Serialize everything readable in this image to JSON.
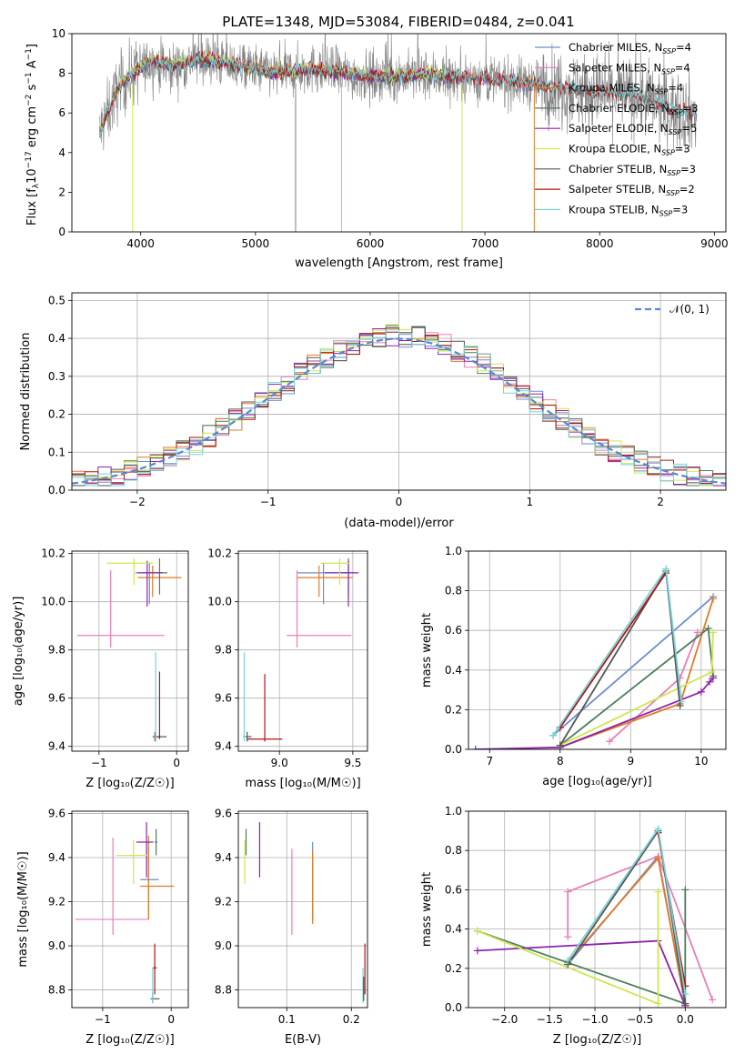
{
  "figure_title": "PLATE=1348, MJD=53084, FIBERID=0484, z=0.041",
  "colors": {
    "Chabrier MILES": "#6c8ecf",
    "Salpeter MILES": "#e77fb8",
    "Kroupa MILES": "#e07b27",
    "Chabrier ELODIE": "#4c7f5c",
    "Salpeter ELODIE": "#8e24aa",
    "Kroupa ELODIE": "#cde74b",
    "Chabrier STELIB": "#555555",
    "Salpeter STELIB": "#b01515",
    "Kroupa STELIB": "#78d3d8",
    "data": "#808080"
  },
  "chart_data": [
    {
      "id": "spectrum",
      "type": "line",
      "title": "PLATE=1348, MJD=53084, FIBERID=0484, z=0.041",
      "xlabel": "wavelength [Angstrom, rest frame]",
      "ylabel": "Flux [f_λ 10^-17 erg cm^-2 s^-1 A^-1]",
      "xlim": [
        3400,
        9100
      ],
      "ylim": [
        0,
        10
      ],
      "xticks": [
        4000,
        5000,
        6000,
        7000,
        8000,
        9000
      ],
      "yticks": [
        0,
        2,
        4,
        6,
        8,
        10
      ],
      "legend_position": "top-right",
      "legend": [
        {
          "label": "Chabrier MILES, N",
          "sub": "SSP",
          "tail": "=4"
        },
        {
          "label": "Salpeter MILES, N",
          "sub": "SSP",
          "tail": "=4"
        },
        {
          "label": "Kroupa MILES, N",
          "sub": "SSP",
          "tail": "=4"
        },
        {
          "label": "Chabrier ELODIE, N",
          "sub": "SSP",
          "tail": "=3"
        },
        {
          "label": "Salpeter ELODIE, N",
          "sub": "SSP",
          "tail": "=5"
        },
        {
          "label": "Kroupa ELODIE, N",
          "sub": "SSP",
          "tail": "=3"
        },
        {
          "label": "Chabrier STELIB, N",
          "sub": "SSP",
          "tail": "=3"
        },
        {
          "label": "Salpeter STELIB, N",
          "sub": "SSP",
          "tail": "=2"
        },
        {
          "label": "Kroupa STELIB, N",
          "sub": "SSP",
          "tail": "=3"
        }
      ],
      "continuum": [
        [
          3640,
          5.0
        ],
        [
          3700,
          5.8
        ],
        [
          3800,
          7.2
        ],
        [
          3900,
          7.8
        ],
        [
          4000,
          8.2
        ],
        [
          4100,
          8.6
        ],
        [
          4300,
          8.3
        ],
        [
          4500,
          8.7
        ],
        [
          4700,
          8.5
        ],
        [
          5000,
          8.2
        ],
        [
          5200,
          8.0
        ],
        [
          5500,
          8.2
        ],
        [
          6000,
          7.8
        ],
        [
          6500,
          7.9
        ],
        [
          7000,
          7.7
        ],
        [
          7500,
          7.4
        ],
        [
          8000,
          7.0
        ],
        [
          8300,
          6.9
        ],
        [
          8500,
          6.5
        ],
        [
          8700,
          6.0
        ],
        [
          8850,
          6.0
        ]
      ]
    },
    {
      "id": "residuals",
      "type": "histogram",
      "xlabel": "(data-model)/error",
      "ylabel": "Normed distribution",
      "xlim": [
        -2.5,
        2.5
      ],
      "ylim": [
        0,
        0.52
      ],
      "xticks": [
        -2,
        -1,
        0,
        1,
        2
      ],
      "yticks": [
        0.0,
        0.1,
        0.2,
        0.3,
        0.4,
        0.5
      ],
      "grid": true,
      "legend_position": "top-right",
      "legend": [
        "𝒩(0, 1)"
      ],
      "bin_width": 0.1,
      "bin_start": -2.5,
      "reference_curve": "standard normal pdf"
    },
    {
      "id": "age_vs_Z",
      "type": "errorbar",
      "xlabel": "Z [log₁₀(Z/Z☉)]",
      "ylabel": "age  [log₁₀(age/yr)]",
      "xlim": [
        -1.35,
        0.15
      ],
      "ylim": [
        9.38,
        10.21
      ],
      "xticks": [
        -1,
        0
      ],
      "yticks": [
        9.4,
        9.6,
        9.8,
        10.0,
        10.2
      ],
      "grid": true,
      "points": [
        {
          "model": "Salpeter MILES",
          "x": -0.85,
          "xerr": [
            0.43,
            0.69
          ],
          "y": 9.86,
          "yerr": [
            0.05,
            0.27
          ]
        },
        {
          "model": "Chabrier MILES",
          "x": -0.35,
          "xerr": [
            0.18,
            0.16
          ],
          "y": 10.12,
          "yerr": [
            0.13,
            0.04
          ]
        },
        {
          "model": "Kroupa MILES",
          "x": -0.31,
          "xerr": [
            0.19,
            0.37
          ],
          "y": 10.1,
          "yerr": [
            0.08,
            0.05
          ]
        },
        {
          "model": "Chabrier ELODIE",
          "x": -0.22,
          "xerr": [
            0.12,
            0.1
          ],
          "y": 10.12,
          "yerr": [
            0.09,
            0.06
          ]
        },
        {
          "model": "Salpeter ELODIE",
          "x": -0.38,
          "xerr": [
            0.12,
            0.2
          ],
          "y": 10.12,
          "yerr": [
            0.14,
            0.05
          ]
        },
        {
          "model": "Kroupa ELODIE",
          "x": -0.55,
          "xerr": [
            0.35,
            0.25
          ],
          "y": 10.16,
          "yerr": [
            0.09,
            0.02
          ]
        },
        {
          "model": "Chabrier STELIB",
          "x": -0.28,
          "xerr": [
            0.03,
            0.15
          ],
          "y": 9.44,
          "yerr": [
            0.02,
            0.02
          ]
        },
        {
          "model": "Salpeter STELIB",
          "x": -0.22,
          "xerr": [
            0.05,
            0.01
          ],
          "y": 9.44,
          "yerr": [
            0.01,
            0.27
          ]
        },
        {
          "model": "Kroupa STELIB",
          "x": -0.27,
          "xerr": [
            0.01,
            0.01
          ],
          "y": 9.44,
          "yerr": [
            0.02,
            0.35
          ]
        }
      ]
    },
    {
      "id": "age_vs_mass",
      "type": "errorbar",
      "xlabel": "mass [log₁₀(M/M☉)]",
      "ylabel": "",
      "xlim": [
        8.72,
        9.6
      ],
      "ylim": [
        9.38,
        10.21
      ],
      "xticks": [
        9.0,
        9.5
      ],
      "yticks": [
        9.4,
        9.6,
        9.8,
        10.0,
        10.2
      ],
      "grid": true,
      "points": [
        {
          "model": "Salpeter MILES",
          "x": 9.12,
          "xerr": [
            0.07,
            0.37
          ],
          "y": 9.86,
          "yerr": [
            0.05,
            0.27
          ]
        },
        {
          "model": "Chabrier MILES",
          "x": 9.3,
          "xerr": [
            0.18,
            0.18
          ],
          "y": 10.12,
          "yerr": [
            0.13,
            0.04
          ]
        },
        {
          "model": "Kroupa MILES",
          "x": 9.27,
          "xerr": [
            0.15,
            0.23
          ],
          "y": 10.1,
          "yerr": [
            0.08,
            0.05
          ]
        },
        {
          "model": "Chabrier ELODIE",
          "x": 9.47,
          "xerr": [
            0.06,
            0.04
          ],
          "y": 10.12,
          "yerr": [
            0.09,
            0.06
          ]
        },
        {
          "model": "Salpeter ELODIE",
          "x": 9.47,
          "xerr": [
            0.16,
            0.07
          ],
          "y": 10.12,
          "yerr": [
            0.14,
            0.05
          ]
        },
        {
          "model": "Kroupa ELODIE",
          "x": 9.41,
          "xerr": [
            0.13,
            0.07
          ],
          "y": 10.16,
          "yerr": [
            0.09,
            0.02
          ]
        },
        {
          "model": "Chabrier STELIB",
          "x": 8.78,
          "xerr": [
            0.02,
            0.03
          ],
          "y": 9.44,
          "yerr": [
            0.02,
            0.02
          ]
        },
        {
          "model": "Salpeter STELIB",
          "x": 8.9,
          "xerr": [
            0.12,
            0.12
          ],
          "y": 9.43,
          "yerr": [
            0.01,
            0.27
          ]
        },
        {
          "model": "Kroupa STELIB",
          "x": 8.76,
          "xerr": [
            0.01,
            0.01
          ],
          "y": 9.44,
          "yerr": [
            0.02,
            0.35
          ]
        }
      ]
    },
    {
      "id": "mass_weight_vs_age",
      "type": "line",
      "xlabel": "age  [log₁₀(age/yr)]",
      "ylabel": "mass weight",
      "xlim": [
        6.7,
        10.35
      ],
      "ylim": [
        0,
        1.0
      ],
      "xticks": [
        7,
        8,
        9,
        10
      ],
      "yticks": [
        0.0,
        0.2,
        0.4,
        0.6,
        0.8,
        1.0
      ],
      "grid": true,
      "series": [
        {
          "model": "Chabrier MILES",
          "x": [
            7.9,
            10.17
          ],
          "y": [
            0.07,
            0.77
          ]
        },
        {
          "model": "Salpeter MILES",
          "x": [
            8.7,
            9.7,
            9.95
          ],
          "y": [
            0.04,
            0.36,
            0.59
          ]
        },
        {
          "model": "Kroupa MILES",
          "x": [
            8.0,
            9.7,
            10.17
          ],
          "y": [
            0.01,
            0.23,
            0.76
          ]
        },
        {
          "model": "Chabrier ELODIE",
          "x": [
            8.0,
            10.1,
            10.17
          ],
          "y": [
            0.02,
            0.61,
            0.37
          ]
        },
        {
          "model": "Salpeter ELODIE",
          "x": [
            6.8,
            8.0,
            10.0,
            10.12,
            10.17
          ],
          "y": [
            0.0,
            0.01,
            0.29,
            0.34,
            0.36
          ]
        },
        {
          "model": "Kroupa ELODIE",
          "x": [
            8.0,
            10.15,
            10.17
          ],
          "y": [
            0.02,
            0.39,
            0.59
          ]
        },
        {
          "model": "Chabrier STELIB",
          "x": [
            8.0,
            9.5,
            9.7
          ],
          "y": [
            0.02,
            0.9,
            0.22
          ]
        },
        {
          "model": "Salpeter STELIB",
          "x": [
            8.0,
            9.5
          ],
          "y": [
            0.11,
            0.89
          ]
        },
        {
          "model": "Kroupa STELIB",
          "x": [
            7.9,
            9.5,
            9.72
          ],
          "y": [
            0.07,
            0.91,
            0.24
          ]
        }
      ]
    },
    {
      "id": "mass_vs_Z",
      "type": "errorbar",
      "xlabel": "Z [log₁₀(Z/Z☉)]",
      "ylabel": "mass [log₁₀(M/M☉)]",
      "xlim": [
        -1.45,
        0.25
      ],
      "ylim": [
        8.72,
        9.61
      ],
      "xticks": [
        -1,
        0
      ],
      "yticks": [
        8.8,
        9.0,
        9.2,
        9.4,
        9.6
      ],
      "grid": true,
      "points": [
        {
          "model": "Salpeter MILES",
          "x": -0.85,
          "xerr": [
            0.55,
            0.52
          ],
          "y": 9.12,
          "yerr": [
            0.07,
            0.37
          ]
        },
        {
          "model": "Chabrier MILES",
          "x": -0.33,
          "xerr": [
            0.12,
            0.15
          ],
          "y": 9.3,
          "yerr": [
            0.18,
            0.18
          ]
        },
        {
          "model": "Kroupa MILES",
          "x": -0.33,
          "xerr": [
            0.12,
            0.37
          ],
          "y": 9.27,
          "yerr": [
            0.15,
            0.23
          ]
        },
        {
          "model": "Chabrier ELODIE",
          "x": -0.22,
          "xerr": [
            0.02,
            0.02
          ],
          "y": 9.47,
          "yerr": [
            0.06,
            0.06
          ]
        },
        {
          "model": "Salpeter ELODIE",
          "x": -0.36,
          "xerr": [
            0.15,
            0.1
          ],
          "y": 9.47,
          "yerr": [
            0.16,
            0.09
          ]
        },
        {
          "model": "Kroupa ELODIE",
          "x": -0.55,
          "xerr": [
            0.25,
            0.2
          ],
          "y": 9.41,
          "yerr": [
            0.13,
            0.07
          ]
        },
        {
          "model": "Chabrier STELIB",
          "x": -0.27,
          "xerr": [
            0.03,
            0.1
          ],
          "y": 8.76,
          "yerr": [
            0.02,
            0.03
          ]
        },
        {
          "model": "Salpeter STELIB",
          "x": -0.24,
          "xerr": [
            0.03,
            0.03
          ],
          "y": 8.9,
          "yerr": [
            0.12,
            0.11
          ]
        },
        {
          "model": "Kroupa STELIB",
          "x": -0.27,
          "xerr": [
            0.01,
            0.01
          ],
          "y": 8.78,
          "yerr": [
            0.04,
            0.12
          ]
        }
      ]
    },
    {
      "id": "mass_vs_ebv",
      "type": "errorbar",
      "xlabel": "E(B-V)",
      "ylabel": "",
      "xlim": [
        0.025,
        0.225
      ],
      "ylim": [
        8.72,
        9.61
      ],
      "xticks": [
        0.1,
        0.2
      ],
      "yticks": [
        8.8,
        9.0,
        9.2,
        9.4,
        9.6
      ],
      "grid": true,
      "points": [
        {
          "model": "Kroupa ELODIE",
          "x": 0.035,
          "y": 9.41,
          "yerr": [
            0.13,
            0.07
          ]
        },
        {
          "model": "Chabrier ELODIE",
          "x": 0.037,
          "y": 9.47,
          "yerr": [
            0.06,
            0.06
          ]
        },
        {
          "model": "Salpeter ELODIE",
          "x": 0.058,
          "y": 9.47,
          "yerr": [
            0.16,
            0.09
          ]
        },
        {
          "model": "Salpeter MILES",
          "x": 0.108,
          "y": 9.3,
          "yerr": [
            0.25,
            0.14
          ]
        },
        {
          "model": "Chabrier MILES",
          "x": 0.14,
          "y": 9.3,
          "yerr": [
            0.18,
            0.17
          ]
        },
        {
          "model": "Kroupa MILES",
          "x": 0.14,
          "y": 9.27,
          "yerr": [
            0.17,
            0.16
          ]
        },
        {
          "model": "Kroupa STELIB",
          "x": 0.218,
          "y": 8.79,
          "yerr": [
            0.05,
            0.11
          ]
        },
        {
          "model": "Chabrier STELIB",
          "x": 0.219,
          "y": 8.78,
          "yerr": [
            0.03,
            0.08
          ]
        },
        {
          "model": "Salpeter STELIB",
          "x": 0.221,
          "y": 8.9,
          "yerr": [
            0.12,
            0.11
          ]
        }
      ]
    },
    {
      "id": "mass_weight_vs_Z",
      "type": "line",
      "xlabel": "Z [log₁₀(Z/Z☉)]",
      "ylabel": "mass weight",
      "xlim": [
        -2.4,
        0.45
      ],
      "ylim": [
        0,
        1.0
      ],
      "xticks": [
        -2.0,
        -1.5,
        -1.0,
        -0.5,
        0.0
      ],
      "yticks": [
        0.0,
        0.2,
        0.4,
        0.6,
        0.8,
        1.0
      ],
      "grid": true,
      "series": [
        {
          "model": "Chabrier MILES",
          "x": [
            -1.3,
            -0.3,
            0.0
          ],
          "y": [
            0.22,
            0.77,
            0.01
          ]
        },
        {
          "model": "Salpeter MILES",
          "x": [
            -1.3,
            -1.3,
            -0.3,
            0.3
          ],
          "y": [
            0.36,
            0.59,
            0.77,
            0.04
          ]
        },
        {
          "model": "Kroupa MILES",
          "x": [
            -1.3,
            -0.3,
            0.0
          ],
          "y": [
            0.23,
            0.76,
            0.01
          ]
        },
        {
          "model": "Chabrier ELODIE",
          "x": [
            -2.3,
            0.0,
            0.0
          ],
          "y": [
            0.39,
            0.02,
            0.6
          ]
        },
        {
          "model": "Salpeter ELODIE",
          "x": [
            -2.3,
            -0.3,
            0.0
          ],
          "y": [
            0.29,
            0.34,
            0.01
          ]
        },
        {
          "model": "Kroupa ELODIE",
          "x": [
            -2.3,
            -0.3,
            -0.3
          ],
          "y": [
            0.39,
            0.02,
            0.59
          ]
        },
        {
          "model": "Chabrier STELIB",
          "x": [
            -1.3,
            -0.3,
            0.0
          ],
          "y": [
            0.22,
            0.9,
            0.02
          ]
        },
        {
          "model": "Salpeter STELIB",
          "x": [
            -0.3,
            0.0
          ],
          "y": [
            0.89,
            0.11
          ]
        },
        {
          "model": "Kroupa STELIB",
          "x": [
            -1.3,
            -0.3,
            0.0
          ],
          "y": [
            0.24,
            0.91,
            0.07
          ]
        }
      ]
    }
  ]
}
